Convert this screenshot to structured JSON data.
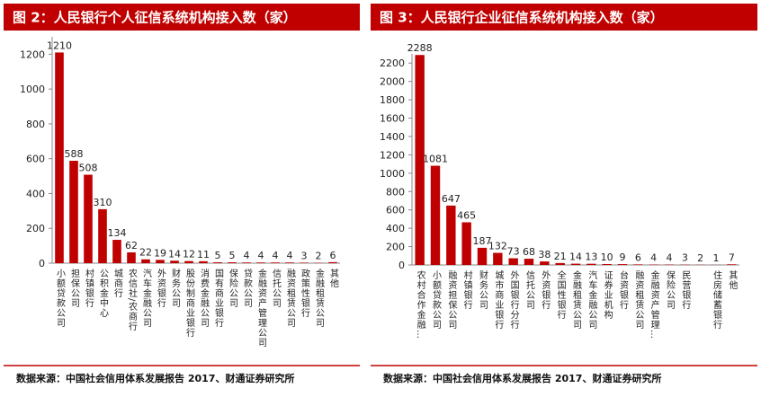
{
  "chart_data": [
    {
      "type": "bar",
      "title": "图 2：人民银行个人征信系统机构接入数（家）",
      "categories": [
        "小额贷款公司",
        "担保公司",
        "村镇银行",
        "公积金中心",
        "城商行",
        "农信社/农商行",
        "汽车金融公司",
        "外资银行",
        "财务公司",
        "股份制商业银行",
        "消费金融公司",
        "国有商业银行",
        "保险公司",
        "贷款公司",
        "金融资产管理公司",
        "信托公司",
        "融资租赁公司",
        "政策性银行",
        "金融租赁公司",
        "其他"
      ],
      "values": [
        1210,
        588,
        508,
        310,
        134,
        62,
        22,
        19,
        14,
        12,
        11,
        5,
        5,
        4,
        4,
        4,
        4,
        3,
        2,
        6
      ],
      "color": "#c00000",
      "ylim": [
        0,
        1300
      ],
      "yticks": [
        0,
        200,
        400,
        600,
        800,
        1000,
        1200
      ],
      "source": "数据来源：中国社会信用体系发展报告 2017、财通证券研究所"
    },
    {
      "type": "bar",
      "title": "图 3：人民银行企业征信系统机构接入数（家）",
      "categories": [
        "农村合作金融…",
        "小额贷款公司",
        "融资担保公司",
        "村镇银行",
        "财务公司",
        "城市商业银行",
        "外国银行分行",
        "信托公司",
        "外资银行",
        "全国性银行",
        "金融租赁公司",
        "汽车金融公司",
        "证券业机构",
        "台资银行",
        "融资租赁公司",
        "金融资产管理…",
        "保险公司",
        "民营银行",
        null,
        "住房储蓄银行",
        "其他"
      ],
      "values": [
        2288,
        1081,
        647,
        465,
        187,
        132,
        73,
        68,
        38,
        21,
        14,
        13,
        10,
        9,
        6,
        4,
        4,
        3,
        2,
        1,
        7
      ],
      "color": "#c00000",
      "ylim": [
        0,
        2300
      ],
      "yticks": [
        0,
        200,
        400,
        600,
        800,
        1000,
        1200,
        1400,
        1600,
        1800,
        2000,
        2200
      ],
      "source": "数据来源：中国社会信用体系发展报告 2017、财通证券研究所"
    }
  ]
}
